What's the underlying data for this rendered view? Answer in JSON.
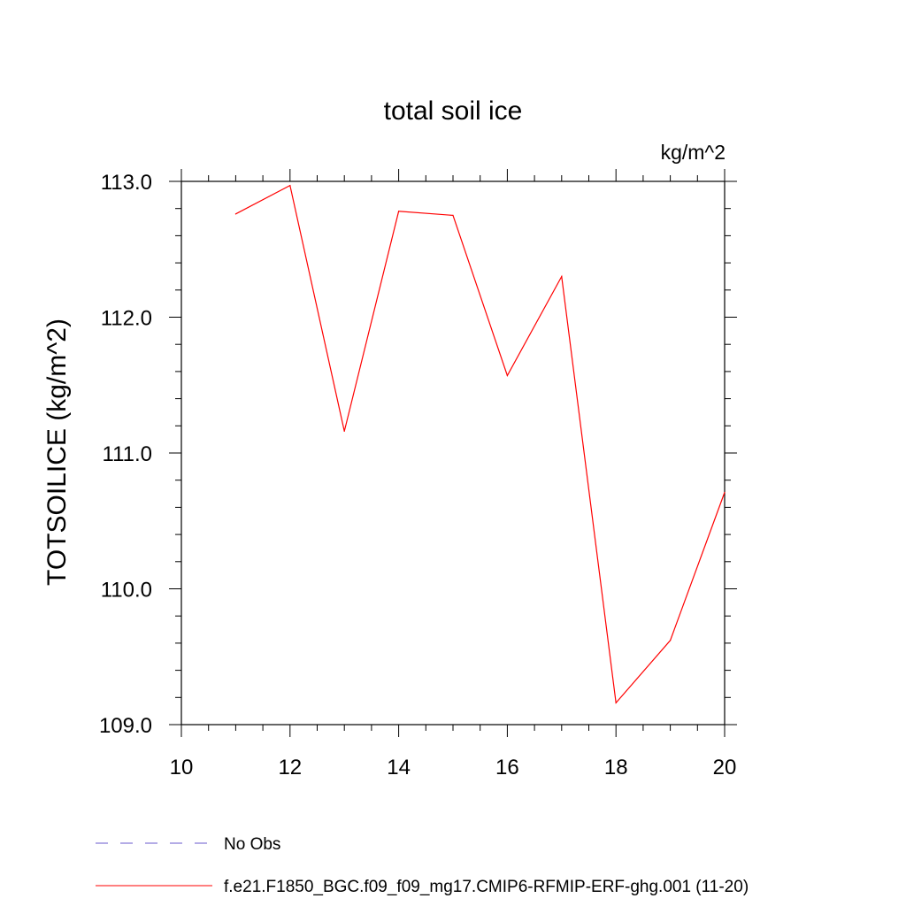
{
  "chart_data": {
    "type": "line",
    "title": "total soil ice",
    "units_label": "kg/m^2",
    "ylabel": "TOTSOILICE  (kg/m^2)",
    "xlabel": "",
    "xlim": [
      10,
      20
    ],
    "ylim": [
      109.0,
      113.0
    ],
    "x_ticks": [
      10,
      12,
      14,
      16,
      18,
      20
    ],
    "y_ticks": [
      "109.0",
      "110.0",
      "111.0",
      "112.0",
      "113.0"
    ],
    "grid": false,
    "legend_position": "bottom-left",
    "series": [
      {
        "name": "No Obs",
        "style": "dashed",
        "color": "#6a5acd",
        "x": [],
        "y": []
      },
      {
        "name": "f.e21.F1850_BGC.f09_f09_mg17.CMIP6-RFMIP-ERF-ghg.001 (11-20)",
        "style": "solid",
        "color": "#ff0000",
        "x": [
          11,
          12,
          13,
          14,
          15,
          16,
          17,
          18,
          19,
          20
        ],
        "y": [
          112.76,
          112.97,
          111.16,
          112.78,
          112.75,
          111.57,
          112.3,
          109.16,
          109.62,
          110.71
        ]
      }
    ]
  }
}
